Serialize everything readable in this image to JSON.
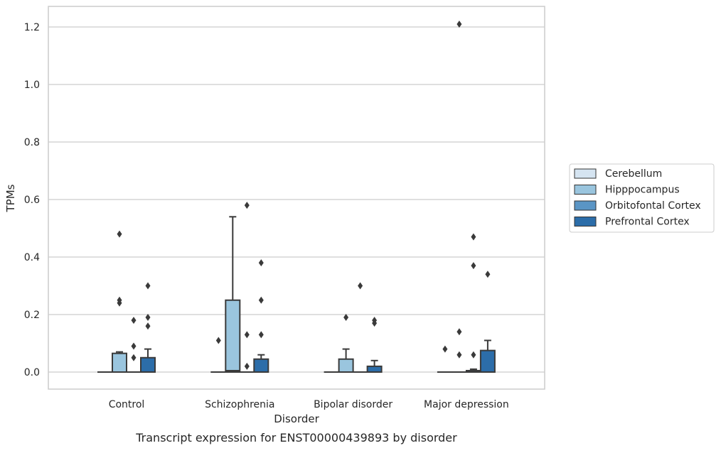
{
  "chart_data": {
    "type": "boxplot",
    "caption": "Transcript expression for ENST00000439893 by disorder",
    "xlabel": "Disorder",
    "ylabel": "TPMs",
    "ylim": [
      -0.06,
      1.27
    ],
    "yticks": [
      0.0,
      0.2,
      0.4,
      0.6,
      0.8,
      1.0,
      1.2
    ],
    "ytick_labels": [
      "0.0",
      "0.2",
      "0.4",
      "0.6",
      "0.8",
      "1.0",
      "1.2"
    ],
    "grid": "horizontal",
    "legend_position": "right",
    "categories": [
      "Control",
      "Schizophrenia",
      "Bipolar disorder",
      "Major depression"
    ],
    "series": [
      {
        "name": "Cerebellum",
        "color": "#d5e4f1",
        "boxes": [
          {
            "q1": 0,
            "median": 0,
            "q3": 0,
            "whislo": 0,
            "whishi": 0,
            "fliers": []
          },
          {
            "q1": 0,
            "median": 0,
            "q3": 0,
            "whislo": 0,
            "whishi": 0,
            "fliers": [
              0.11
            ]
          },
          {
            "q1": 0,
            "median": 0,
            "q3": 0,
            "whislo": 0,
            "whishi": 0,
            "fliers": []
          },
          {
            "q1": 0,
            "median": 0,
            "q3": 0,
            "whislo": 0,
            "whishi": 0,
            "fliers": [
              0.08
            ]
          }
        ]
      },
      {
        "name": "Hipppocampus",
        "color": "#9ac5de",
        "boxes": [
          {
            "q1": 0,
            "median": 0,
            "q3": 0.065,
            "whislo": 0,
            "whishi": 0.07,
            "fliers": [
              0.24,
              0.25,
              0.48
            ]
          },
          {
            "q1": 0,
            "median": 0.005,
            "q3": 0.25,
            "whislo": 0,
            "whishi": 0.54,
            "fliers": []
          },
          {
            "q1": 0,
            "median": 0,
            "q3": 0.045,
            "whislo": 0,
            "whishi": 0.08,
            "fliers": [
              0.19
            ]
          },
          {
            "q1": 0,
            "median": 0,
            "q3": 0,
            "whislo": 0,
            "whishi": 0,
            "fliers": [
              0.06,
              0.14,
              1.21
            ]
          }
        ]
      },
      {
        "name": "Orbitofontal Cortex",
        "color": "#5a95c5",
        "boxes": [
          {
            "q1": 0,
            "median": 0,
            "q3": 0,
            "whislo": 0,
            "whishi": 0,
            "fliers": [
              0.05,
              0.09,
              0.18
            ]
          },
          {
            "q1": 0,
            "median": 0,
            "q3": 0,
            "whislo": 0,
            "whishi": 0,
            "fliers": [
              0.02,
              0.13,
              0.58
            ]
          },
          {
            "q1": 0,
            "median": 0,
            "q3": 0,
            "whislo": 0,
            "whishi": 0,
            "fliers": [
              0.3
            ]
          },
          {
            "q1": 0,
            "median": 0,
            "q3": 0.005,
            "whislo": 0,
            "whishi": 0.01,
            "fliers": [
              0.06,
              0.37,
              0.47
            ]
          }
        ]
      },
      {
        "name": "Prefrontal Cortex",
        "color": "#2c6da9",
        "boxes": [
          {
            "q1": 0,
            "median": 0,
            "q3": 0.05,
            "whislo": 0,
            "whishi": 0.08,
            "fliers": [
              0.16,
              0.19,
              0.3
            ]
          },
          {
            "q1": 0,
            "median": 0,
            "q3": 0.045,
            "whislo": 0,
            "whishi": 0.06,
            "fliers": [
              0.13,
              0.25,
              0.38
            ]
          },
          {
            "q1": 0,
            "median": 0,
            "q3": 0.02,
            "whislo": 0,
            "whishi": 0.04,
            "fliers": [
              0.17,
              0.18
            ]
          },
          {
            "q1": 0,
            "median": 0,
            "q3": 0.075,
            "whislo": 0,
            "whishi": 0.11,
            "fliers": [
              0.34
            ]
          }
        ]
      }
    ]
  }
}
